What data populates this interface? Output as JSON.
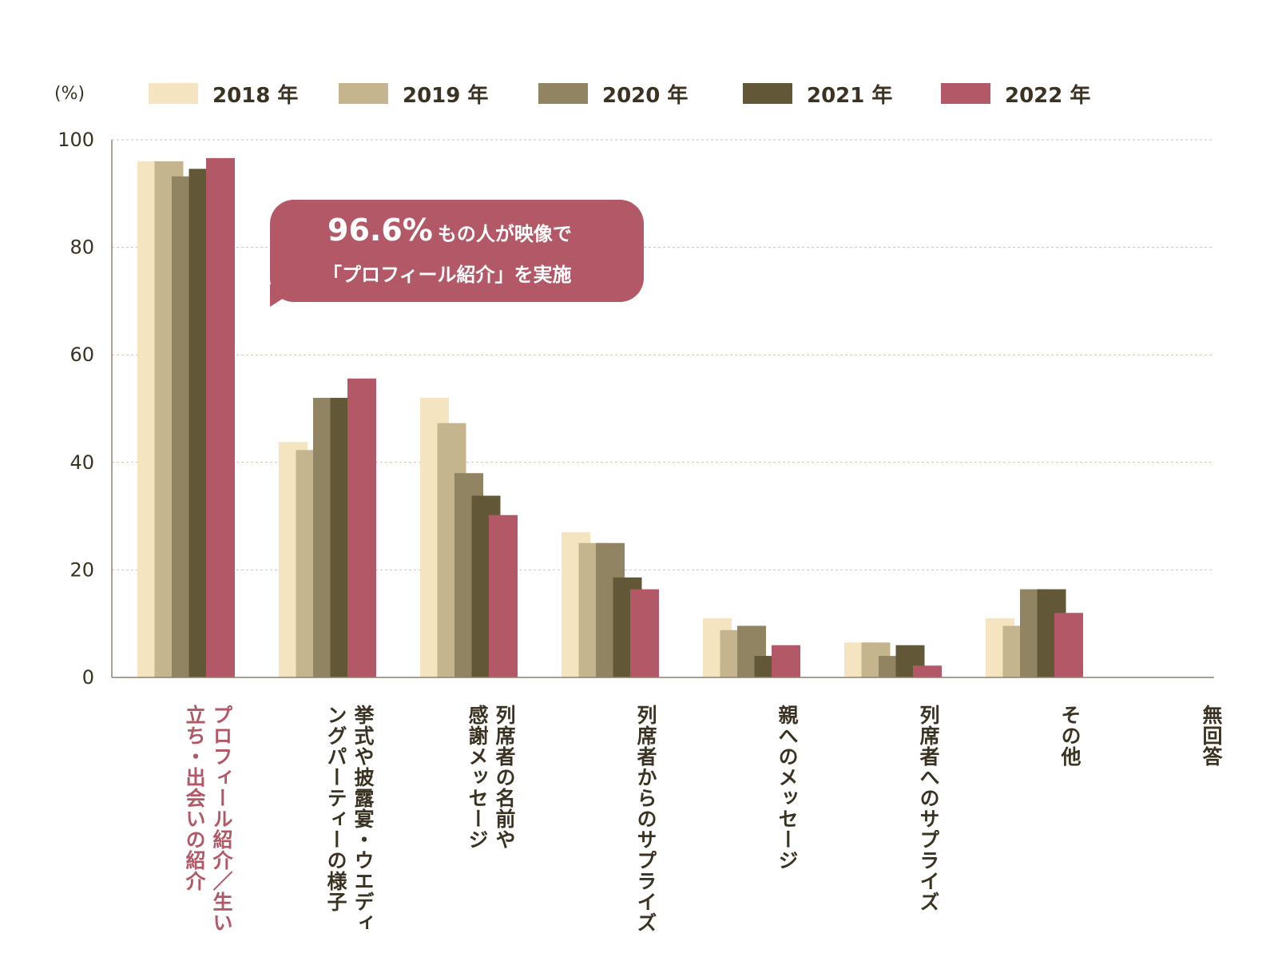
{
  "chart_data": {
    "type": "bar",
    "unit_label": "(%)",
    "ylim": [
      0,
      100
    ],
    "yticks": [
      0,
      20,
      40,
      60,
      80,
      100
    ],
    "grid": true,
    "legend_position": "top",
    "categories": [
      "プロフィール紹介／生い\n立ち・出会いの紹介",
      "挙式や披露宴・ウエディ\nングパーティーの様子",
      "列席者の名前や\n感謝メッセージ",
      "列席者からのサプライズ",
      "親へのメッセージ",
      "列席者へのサプライズ",
      "その他",
      "無回答"
    ],
    "highlight_category_index": 0,
    "series": [
      {
        "name": "2018 年",
        "color": "#f4e4c0",
        "values": [
          96.0,
          43.8,
          52.0,
          27.0,
          11.0,
          6.5,
          11.0,
          0
        ]
      },
      {
        "name": "2019 年",
        "color": "#c4b58e",
        "values": [
          96.0,
          42.3,
          47.3,
          25.0,
          8.8,
          6.5,
          9.6,
          0
        ]
      },
      {
        "name": "2020 年",
        "color": "#918462",
        "values": [
          93.2,
          52.0,
          38.0,
          25.0,
          9.6,
          4.0,
          16.4,
          0
        ]
      },
      {
        "name": "2021 年",
        "color": "#625838",
        "values": [
          94.6,
          52.0,
          33.8,
          18.6,
          4.0,
          6.0,
          16.4,
          0
        ]
      },
      {
        "name": "2022 年",
        "color": "#b25866",
        "values": [
          96.6,
          55.6,
          30.2,
          16.4,
          6.0,
          2.2,
          12.0,
          0
        ]
      }
    ],
    "annotation": {
      "value_text": "96.6%",
      "line1_rest": "もの人が映像で",
      "line2": "「プロフィール紹介」を実施"
    }
  }
}
